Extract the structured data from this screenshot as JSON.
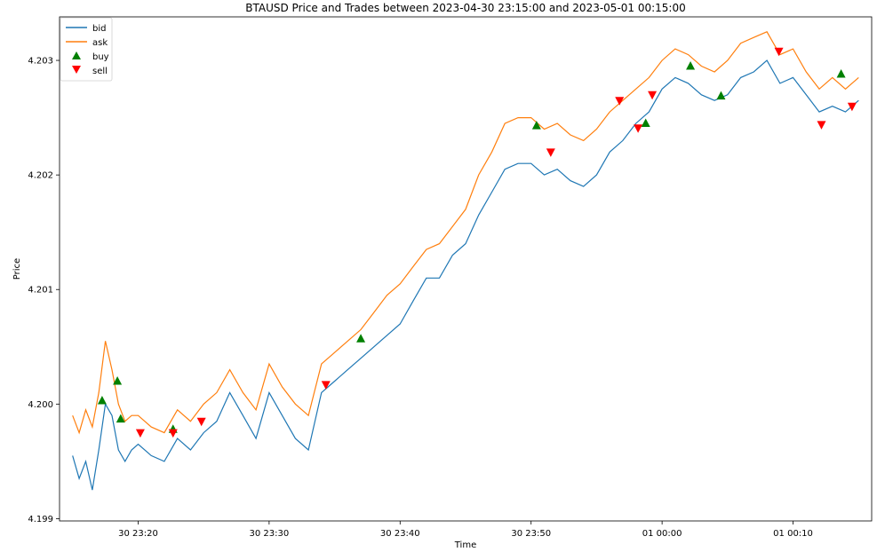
{
  "chart_data": {
    "type": "line",
    "title": "BTAUSD Price and Trades between 2023-04-30 23:15:00 and 2023-05-01 00:15:00",
    "xlabel": "Time",
    "ylabel": "Price",
    "xlim": [
      "2023-04-30 23:14:00",
      "2023-05-01 00:16:00"
    ],
    "ylim": [
      4.19898,
      4.20338
    ],
    "x_ticks": [
      {
        "t": "2023-04-30 23:20",
        "label": "30 23:20"
      },
      {
        "t": "2023-04-30 23:30",
        "label": "30 23:30"
      },
      {
        "t": "2023-04-30 23:40",
        "label": "30 23:40"
      },
      {
        "t": "2023-04-30 23:50",
        "label": "30 23:50"
      },
      {
        "t": "2023-05-01 00:00",
        "label": "01 00:00"
      },
      {
        "t": "2023-05-01 00:10",
        "label": "01 00:10"
      }
    ],
    "y_ticks": [
      {
        "v": 4.199,
        "label": "4.199"
      },
      {
        "v": 4.2,
        "label": "4.200"
      },
      {
        "v": 4.201,
        "label": "4.201"
      },
      {
        "v": 4.202,
        "label": "4.202"
      },
      {
        "v": 4.203,
        "label": "4.203"
      }
    ],
    "grid": false,
    "legend": {
      "position": "top-left",
      "entries": [
        "bid",
        "ask",
        "buy",
        "sell"
      ]
    },
    "colors": {
      "bid": "#1f77b4",
      "ask": "#ff7f0e",
      "buy": "#008000",
      "sell": "#ff0000"
    },
    "series": [
      {
        "name": "bid",
        "type": "line",
        "x": [
          "2023-04-30 23:15:00",
          "2023-04-30 23:15:30",
          "2023-04-30 23:16:00",
          "2023-04-30 23:16:30",
          "2023-04-30 23:17:00",
          "2023-04-30 23:17:30",
          "2023-04-30 23:18:00",
          "2023-04-30 23:18:30",
          "2023-04-30 23:19:00",
          "2023-04-30 23:19:30",
          "2023-04-30 23:20:00",
          "2023-04-30 23:21:00",
          "2023-04-30 23:22:00",
          "2023-04-30 23:23:00",
          "2023-04-30 23:24:00",
          "2023-04-30 23:25:00",
          "2023-04-30 23:26:00",
          "2023-04-30 23:27:00",
          "2023-04-30 23:28:00",
          "2023-04-30 23:29:00",
          "2023-04-30 23:30:00",
          "2023-04-30 23:31:00",
          "2023-04-30 23:32:00",
          "2023-04-30 23:33:00",
          "2023-04-30 23:34:00",
          "2023-04-30 23:35:00",
          "2023-04-30 23:36:00",
          "2023-04-30 23:37:00",
          "2023-04-30 23:38:00",
          "2023-04-30 23:39:00",
          "2023-04-30 23:40:00",
          "2023-04-30 23:41:00",
          "2023-04-30 23:42:00",
          "2023-04-30 23:43:00",
          "2023-04-30 23:44:00",
          "2023-04-30 23:45:00",
          "2023-04-30 23:46:00",
          "2023-04-30 23:47:00",
          "2023-04-30 23:48:00",
          "2023-04-30 23:49:00",
          "2023-04-30 23:50:00",
          "2023-04-30 23:51:00",
          "2023-04-30 23:52:00",
          "2023-04-30 23:53:00",
          "2023-04-30 23:54:00",
          "2023-04-30 23:55:00",
          "2023-04-30 23:56:00",
          "2023-04-30 23:57:00",
          "2023-04-30 23:58:00",
          "2023-04-30 23:59:00",
          "2023-05-01 00:00:00",
          "2023-05-01 00:01:00",
          "2023-05-01 00:02:00",
          "2023-05-01 00:03:00",
          "2023-05-01 00:04:00",
          "2023-05-01 00:05:00",
          "2023-05-01 00:06:00",
          "2023-05-01 00:07:00",
          "2023-05-01 00:08:00",
          "2023-05-01 00:09:00",
          "2023-05-01 00:10:00",
          "2023-05-01 00:11:00",
          "2023-05-01 00:12:00",
          "2023-05-01 00:13:00",
          "2023-05-01 00:14:00",
          "2023-05-01 00:15:00"
        ],
        "y": [
          4.19955,
          4.19935,
          4.1995,
          4.19925,
          4.1996,
          4.2,
          4.1999,
          4.1996,
          4.1995,
          4.1996,
          4.19965,
          4.19955,
          4.1995,
          4.1997,
          4.1996,
          4.19975,
          4.19985,
          4.2001,
          4.1999,
          4.1997,
          4.2001,
          4.1999,
          4.1997,
          4.1996,
          4.2001,
          4.2002,
          4.2003,
          4.2004,
          4.2005,
          4.2006,
          4.2007,
          4.2009,
          4.2011,
          4.2011,
          4.2013,
          4.2014,
          4.20165,
          4.20185,
          4.20205,
          4.2021,
          4.2021,
          4.202,
          4.20205,
          4.20195,
          4.2019,
          4.202,
          4.2022,
          4.2023,
          4.20245,
          4.20255,
          4.20275,
          4.20285,
          4.2028,
          4.2027,
          4.20265,
          4.2027,
          4.20285,
          4.2029,
          4.203,
          4.2028,
          4.20285,
          4.2027,
          4.20255,
          4.2026,
          4.20255,
          4.20265
        ]
      },
      {
        "name": "ask",
        "type": "line",
        "x": [
          "2023-04-30 23:15:00",
          "2023-04-30 23:15:30",
          "2023-04-30 23:16:00",
          "2023-04-30 23:16:30",
          "2023-04-30 23:17:00",
          "2023-04-30 23:17:30",
          "2023-04-30 23:18:00",
          "2023-04-30 23:18:30",
          "2023-04-30 23:19:00",
          "2023-04-30 23:19:30",
          "2023-04-30 23:20:00",
          "2023-04-30 23:21:00",
          "2023-04-30 23:22:00",
          "2023-04-30 23:23:00",
          "2023-04-30 23:24:00",
          "2023-04-30 23:25:00",
          "2023-04-30 23:26:00",
          "2023-04-30 23:27:00",
          "2023-04-30 23:28:00",
          "2023-04-30 23:29:00",
          "2023-04-30 23:30:00",
          "2023-04-30 23:31:00",
          "2023-04-30 23:32:00",
          "2023-04-30 23:33:00",
          "2023-04-30 23:34:00",
          "2023-04-30 23:35:00",
          "2023-04-30 23:36:00",
          "2023-04-30 23:37:00",
          "2023-04-30 23:38:00",
          "2023-04-30 23:39:00",
          "2023-04-30 23:40:00",
          "2023-04-30 23:41:00",
          "2023-04-30 23:42:00",
          "2023-04-30 23:43:00",
          "2023-04-30 23:44:00",
          "2023-04-30 23:45:00",
          "2023-04-30 23:46:00",
          "2023-04-30 23:47:00",
          "2023-04-30 23:48:00",
          "2023-04-30 23:49:00",
          "2023-04-30 23:50:00",
          "2023-04-30 23:51:00",
          "2023-04-30 23:52:00",
          "2023-04-30 23:53:00",
          "2023-04-30 23:54:00",
          "2023-04-30 23:55:00",
          "2023-04-30 23:56:00",
          "2023-04-30 23:57:00",
          "2023-04-30 23:58:00",
          "2023-04-30 23:59:00",
          "2023-05-01 00:00:00",
          "2023-05-01 00:01:00",
          "2023-05-01 00:02:00",
          "2023-05-01 00:03:00",
          "2023-05-01 00:04:00",
          "2023-05-01 00:05:00",
          "2023-05-01 00:06:00",
          "2023-05-01 00:07:00",
          "2023-05-01 00:08:00",
          "2023-05-01 00:09:00",
          "2023-05-01 00:10:00",
          "2023-05-01 00:11:00",
          "2023-05-01 00:12:00",
          "2023-05-01 00:13:00",
          "2023-05-01 00:14:00",
          "2023-05-01 00:15:00"
        ],
        "y": [
          4.1999,
          4.19975,
          4.19995,
          4.1998,
          4.2001,
          4.20055,
          4.2003,
          4.2,
          4.19985,
          4.1999,
          4.1999,
          4.1998,
          4.19975,
          4.19995,
          4.19985,
          4.2,
          4.2001,
          4.2003,
          4.2001,
          4.19995,
          4.20035,
          4.20015,
          4.2,
          4.1999,
          4.20035,
          4.20045,
          4.20055,
          4.20065,
          4.2008,
          4.20095,
          4.20105,
          4.2012,
          4.20135,
          4.2014,
          4.20155,
          4.2017,
          4.202,
          4.2022,
          4.20245,
          4.2025,
          4.2025,
          4.2024,
          4.20245,
          4.20235,
          4.2023,
          4.2024,
          4.20255,
          4.20265,
          4.20275,
          4.20285,
          4.203,
          4.2031,
          4.20305,
          4.20295,
          4.2029,
          4.203,
          4.20315,
          4.2032,
          4.20325,
          4.20305,
          4.2031,
          4.2029,
          4.20275,
          4.20285,
          4.20275,
          4.20285
        ]
      },
      {
        "name": "buy",
        "type": "scatter",
        "x": [
          "2023-04-30 23:17:15",
          "2023-04-30 23:18:25",
          "2023-04-30 23:18:40",
          "2023-04-30 23:22:40",
          "2023-04-30 23:37:00",
          "2023-04-30 23:50:25",
          "2023-04-30 23:58:45",
          "2023-05-01 00:02:10",
          "2023-05-01 00:04:30",
          "2023-05-01 00:13:40"
        ],
        "y": [
          4.20003,
          4.2002,
          4.19987,
          4.19978,
          4.20057,
          4.20243,
          4.20245,
          4.20295,
          4.20269,
          4.20288
        ]
      },
      {
        "name": "sell",
        "type": "scatter",
        "x": [
          "2023-04-30 23:20:10",
          "2023-04-30 23:22:40",
          "2023-04-30 23:24:50",
          "2023-04-30 23:34:20",
          "2023-04-30 23:51:30",
          "2023-04-30 23:56:45",
          "2023-04-30 23:58:10",
          "2023-04-30 23:59:15",
          "2023-05-01 00:08:55",
          "2023-05-01 00:12:10",
          "2023-05-01 00:14:30"
        ],
        "y": [
          4.19975,
          4.19975,
          4.19985,
          4.20017,
          4.2022,
          4.20265,
          4.20241,
          4.2027,
          4.20308,
          4.20244,
          4.2026
        ]
      }
    ]
  }
}
